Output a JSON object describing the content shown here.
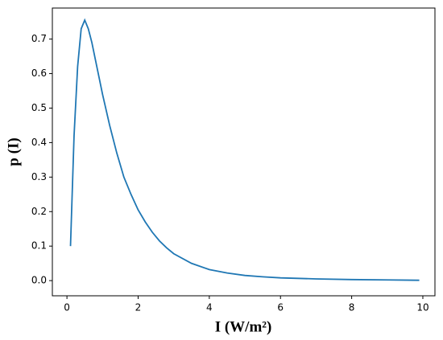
{
  "chart_data": {
    "type": "line",
    "x_label": "I (W/m²)",
    "y_label": "p (I)",
    "x": [
      0.1,
      0.2,
      0.3,
      0.4,
      0.5,
      0.6,
      0.7,
      0.8,
      0.9,
      1.0,
      1.2,
      1.4,
      1.6,
      1.8,
      2.0,
      2.2,
      2.4,
      2.6,
      2.8,
      3.0,
      3.5,
      4.0,
      4.5,
      5.0,
      5.5,
      6.0,
      7.0,
      8.0,
      9.0,
      9.9
    ],
    "series": [
      {
        "color": "#1f77b4",
        "values": [
          0.1,
          0.42,
          0.62,
          0.73,
          0.755,
          0.73,
          0.69,
          0.64,
          0.59,
          0.54,
          0.45,
          0.37,
          0.3,
          0.25,
          0.205,
          0.17,
          0.14,
          0.115,
          0.095,
          0.078,
          0.05,
          0.032,
          0.022,
          0.015,
          0.011,
          0.008,
          0.005,
          0.003,
          0.002,
          0.001
        ]
      }
    ],
    "xlim": [
      -0.41,
      10.34
    ],
    "ylim": [
      -0.044,
      0.79
    ],
    "xticks": [
      0,
      2,
      4,
      6,
      8,
      10
    ],
    "yticks": [
      {
        "value": 0,
        "label": "0.0"
      },
      0.1,
      0.2,
      0.3,
      0.4,
      0.5,
      0.6,
      0.7
    ],
    "grid": false
  }
}
